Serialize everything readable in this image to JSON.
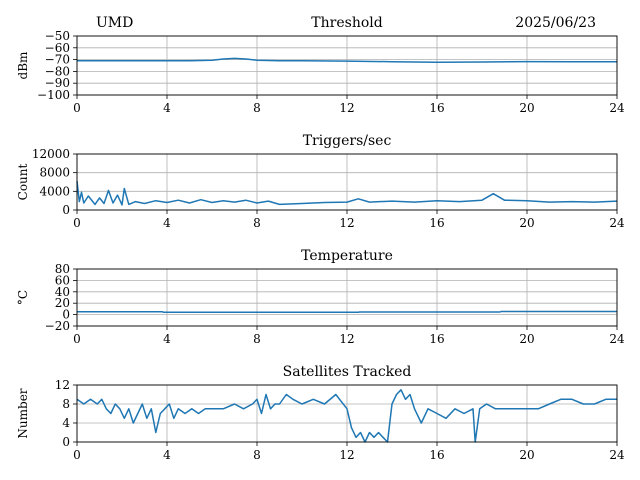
{
  "header": {
    "station": "UMD",
    "date": "2025/06/23"
  },
  "chart_data": [
    {
      "type": "line",
      "title": "Threshold",
      "ylabel": "dBm",
      "xlim": [
        0,
        24
      ],
      "ylim": [
        -100,
        -50
      ],
      "xticks": [
        0,
        4,
        8,
        12,
        16,
        20,
        24
      ],
      "yticks": [
        -100,
        -90,
        -80,
        -70,
        -60,
        -50
      ],
      "yticklabels": [
        "−100",
        "−90",
        "−80",
        "−70",
        "−60",
        "−50"
      ],
      "grid": true,
      "x": [
        0,
        1,
        2,
        3,
        4,
        5,
        6,
        6.5,
        7,
        7.5,
        8,
        9,
        10,
        12,
        14,
        16,
        18,
        20,
        22,
        24
      ],
      "values": [
        -71,
        -71,
        -71,
        -71,
        -71,
        -71,
        -70.5,
        -69.5,
        -69,
        -69.5,
        -70.5,
        -71,
        -71,
        -71.3,
        -71.8,
        -72.3,
        -72,
        -71.7,
        -71.8,
        -71.8
      ]
    },
    {
      "type": "line",
      "title": "Triggers/sec",
      "ylabel": "Count",
      "xlim": [
        0,
        24
      ],
      "ylim": [
        0,
        12000
      ],
      "xticks": [
        0,
        4,
        8,
        12,
        16,
        20,
        24
      ],
      "yticks": [
        0,
        4000,
        8000,
        12000
      ],
      "yticklabels": [
        "0",
        "4000",
        "8000",
        "12000"
      ],
      "grid": true,
      "x": [
        0,
        0.1,
        0.2,
        0.3,
        0.5,
        0.8,
        1,
        1.2,
        1.4,
        1.6,
        1.8,
        2,
        2.1,
        2.3,
        2.6,
        3,
        3.5,
        4,
        4.5,
        5,
        5.5,
        6,
        6.5,
        7,
        7.5,
        8,
        8.5,
        9,
        10,
        11,
        12,
        12.5,
        13,
        14,
        15,
        16,
        17,
        18,
        18.5,
        19,
        20,
        21,
        22,
        23,
        24
      ],
      "values": [
        6200,
        1800,
        3800,
        1500,
        3000,
        1200,
        2600,
        1400,
        4200,
        1500,
        3200,
        1100,
        4600,
        1200,
        1800,
        1400,
        2000,
        1600,
        2100,
        1500,
        2200,
        1600,
        2000,
        1700,
        2100,
        1500,
        1900,
        1200,
        1400,
        1600,
        1700,
        2400,
        1700,
        1900,
        1700,
        2000,
        1800,
        2100,
        3500,
        2100,
        2000,
        1700,
        1800,
        1700,
        1900
      ]
    },
    {
      "type": "line",
      "title": "Temperature",
      "ylabel": "°C",
      "xlim": [
        0,
        24
      ],
      "ylim": [
        -20,
        80
      ],
      "xticks": [
        0,
        4,
        8,
        12,
        16,
        20,
        24
      ],
      "yticks": [
        -20,
        0,
        20,
        40,
        60,
        80
      ],
      "yticklabels": [
        "−20",
        "0",
        "20",
        "40",
        "60",
        "80"
      ],
      "grid": true,
      "x": [
        0,
        3.8,
        3.85,
        12.5,
        12.55,
        18.8,
        18.85,
        24
      ],
      "values": [
        5,
        5,
        4,
        4,
        4.5,
        4.5,
        5.5,
        5.5
      ]
    },
    {
      "type": "line",
      "title": "Satellites Tracked",
      "ylabel": "Number",
      "xlim": [
        0,
        24
      ],
      "ylim": [
        0,
        12
      ],
      "xticks": [
        0,
        4,
        8,
        12,
        16,
        20,
        24
      ],
      "yticks": [
        0,
        4,
        8,
        12
      ],
      "yticklabels": [
        "0",
        "4",
        "8",
        "12"
      ],
      "grid": true,
      "x": [
        0,
        0.3,
        0.6,
        0.9,
        1.1,
        1.3,
        1.5,
        1.7,
        1.9,
        2.1,
        2.3,
        2.5,
        2.7,
        2.9,
        3.1,
        3.3,
        3.5,
        3.7,
        3.9,
        4.1,
        4.3,
        4.5,
        4.8,
        5.1,
        5.4,
        5.7,
        6,
        6.5,
        7,
        7.4,
        7.8,
        8,
        8.2,
        8.4,
        8.6,
        8.8,
        9,
        9.3,
        9.6,
        10,
        10.5,
        11,
        11.5,
        12,
        12.2,
        12.4,
        12.6,
        12.8,
        13,
        13.2,
        13.4,
        13.6,
        13.8,
        14,
        14.2,
        14.4,
        14.6,
        14.8,
        15,
        15.3,
        15.6,
        16,
        16.4,
        16.8,
        17.2,
        17.6,
        17.7,
        17.9,
        18.2,
        18.6,
        19,
        19.5,
        20,
        20.5,
        21,
        21.5,
        22,
        22.5,
        23,
        23.5,
        24
      ],
      "values": [
        9,
        8,
        9,
        8,
        9,
        7,
        6,
        8,
        7,
        5,
        7,
        4,
        6,
        8,
        5,
        7,
        2,
        6,
        7,
        8,
        5,
        7,
        6,
        7,
        6,
        7,
        7,
        7,
        8,
        7,
        8,
        9,
        6,
        10,
        7,
        8,
        8,
        10,
        9,
        8,
        9,
        8,
        10,
        7,
        3,
        1,
        2,
        0,
        2,
        1,
        2,
        1,
        0,
        8,
        10,
        11,
        9,
        10,
        7,
        4,
        7,
        6,
        5,
        7,
        6,
        7,
        0,
        7,
        8,
        7,
        7,
        7,
        7,
        7,
        8,
        9,
        9,
        8,
        8,
        9,
        9
      ]
    }
  ]
}
